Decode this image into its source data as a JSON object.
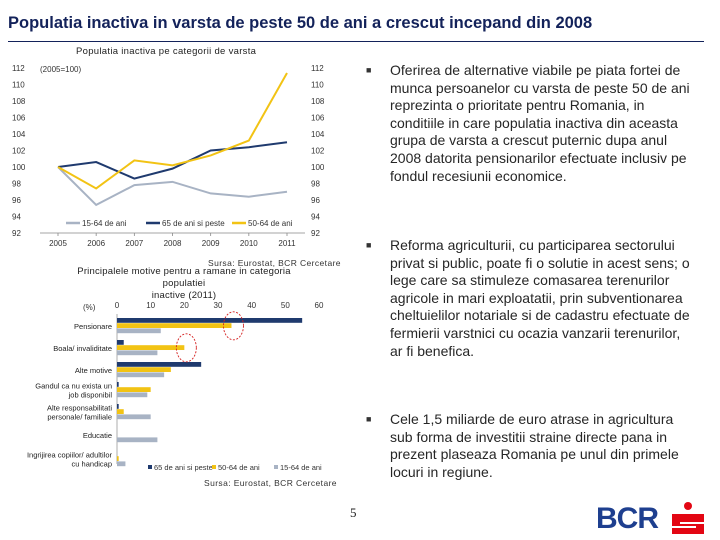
{
  "slide": {
    "title": "Populatia inactiva in varsta de peste 50 de ani a crescut incepand din 2008",
    "page_number": "5",
    "colors": {
      "title": "#13225a",
      "navy": "#1f3a6e",
      "yellow": "#f2c314",
      "gray": "#a8b3c4",
      "red_circle": "#d42020",
      "bcr_blue": "#1e3f8f",
      "bcr_red": "#e30613"
    }
  },
  "chart1": {
    "title": "Populatia inactiva pe categorii de varsta",
    "source": "Sursa: Eurostat, BCR Cercetare",
    "index_note": "(2005=100)"
  },
  "chart2": {
    "title_line1": "Principalele motive pentru a ramane in categoria populatiei",
    "title_line2": "inactive (2011)",
    "unit": "(%)",
    "source": "Sursa: Eurostat, BCR Cercetare",
    "category_labels": [
      [
        "Pensionare"
      ],
      [
        "Boala/ invaliditate"
      ],
      [
        "Alte motive"
      ],
      [
        "Gandul ca nu exista un",
        "job disponibil"
      ],
      [
        "Alte responsabilitati",
        "personale/ familiale"
      ],
      [
        "Educatie"
      ],
      [
        "Ingrijirea copiilor/ adultilor",
        "cu handicap"
      ]
    ]
  },
  "chart_data": [
    {
      "type": "line",
      "title": "Populatia inactiva pe categorii de varsta",
      "x": [
        "2005",
        "2006",
        "2007",
        "2008",
        "2009",
        "2010",
        "2011"
      ],
      "ylim": [
        92,
        112
      ],
      "yticks": [
        92,
        94,
        96,
        98,
        100,
        102,
        104,
        106,
        108,
        110,
        112
      ],
      "series": [
        {
          "name": "15-64 de ani",
          "values": [
            100,
            95.4,
            97.8,
            98.2,
            96.8,
            96.4,
            97
          ]
        },
        {
          "name": "65 de ani si peste",
          "values": [
            100,
            100.6,
            98.6,
            99.8,
            102,
            102.4,
            103
          ]
        },
        {
          "name": "50-64 de ani",
          "values": [
            100,
            97.4,
            100.8,
            100.2,
            101.4,
            103.2,
            111.4
          ]
        }
      ]
    },
    {
      "type": "bar",
      "orientation": "horizontal",
      "unit": "%",
      "xlim": [
        0,
        60
      ],
      "xticks": [
        0,
        10,
        20,
        30,
        40,
        50,
        60
      ],
      "categories": [
        "Pensionare",
        "Boala/ invaliditate",
        "Alte motive",
        "Gandul ca nu exista un job disponibil",
        "Alte responsabilitati personale/ familiale",
        "Educatie",
        "Ingrijirea copiilor/ adultilor cu handicap"
      ],
      "series": [
        {
          "name": "65 de ani si peste",
          "values": [
            55,
            2,
            25,
            0.5,
            0.5,
            0,
            0
          ]
        },
        {
          "name": "50-64 de ani",
          "values": [
            34,
            20,
            16,
            10,
            2,
            0,
            0.5
          ]
        },
        {
          "name": "15-64 de ani",
          "values": [
            13,
            12,
            14,
            9,
            10,
            12,
            2.5
          ]
        }
      ]
    }
  ],
  "bullets": [
    "Oferirea de alternative viabile pe piata fortei de munca persoanelor cu varsta de peste 50 de ani  reprezinta o prioritate pentru Romania, in conditiile in care populatia inactiva din aceasta grupa de varsta a crescut puternic dupa anul 2008 datorita pensionarilor efectuate inclusiv pe fondul recesiunii economice.",
    "Reforma agriculturii, cu participarea sectorului privat si public, poate fi o solutie in acest sens; o lege care sa stimuleze comasarea terenurilor agricole in mari exploatatii, prin subventionarea cheltuielilor notariale si de cadastru efectuate de fermierii varstnici cu ocazia vanzarii terenurilor, ar fi benefica.",
    "Cele 1,5 miliarde de euro atrase in agricultura sub forma de investitii straine directe pana in prezent plaseaza Romania pe unul din primele locuri in regiune."
  ],
  "logo": {
    "text": "BCR",
    "icon": "bcr-s-icon"
  }
}
